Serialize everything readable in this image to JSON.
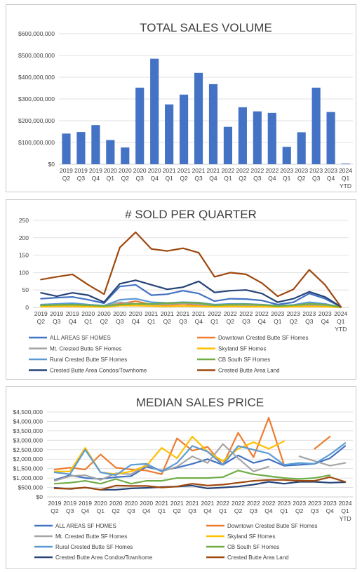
{
  "chart_data": [
    {
      "type": "bar",
      "title": "TOTAL SALES VOLUME",
      "categories": [
        [
          "2019",
          "Q2"
        ],
        [
          "2019",
          "Q3"
        ],
        [
          "2019",
          "Q4"
        ],
        [
          "2020",
          "Q1"
        ],
        [
          "2020",
          "Q2"
        ],
        [
          "2020",
          "Q3"
        ],
        [
          "2020",
          "Q4"
        ],
        [
          "2021",
          "Q1"
        ],
        [
          "2021",
          "Q2"
        ],
        [
          "2021",
          "Q3"
        ],
        [
          "2021",
          "Q4"
        ],
        [
          "2022",
          "Q1"
        ],
        [
          "2022",
          "Q2"
        ],
        [
          "2022",
          "Q3"
        ],
        [
          "2022",
          "Q4"
        ],
        [
          "2023",
          "Q1"
        ],
        [
          "2023",
          "Q2"
        ],
        [
          "2023",
          "Q3"
        ],
        [
          "2023",
          "Q4"
        ],
        [
          "2024",
          "Q1",
          "YTD"
        ]
      ],
      "values": [
        141000000,
        148000000,
        180000000,
        111000000,
        77000000,
        352000000,
        485000000,
        275000000,
        320000000,
        420000000,
        368000000,
        172000000,
        262000000,
        243000000,
        236000000,
        80000000,
        147000000,
        352000000,
        240000000,
        3000000
      ],
      "ylim": [
        0,
        600000000
      ],
      "yticks": [
        "$0",
        "$100,000,000",
        "$200,000,000",
        "$300,000,000",
        "$400,000,000",
        "$500,000,000",
        "$600,000,000"
      ],
      "color": "#4472C4",
      "grid": true
    },
    {
      "type": "line",
      "title": "# SOLD PER QUARTER",
      "categories": [
        [
          "2019",
          "Q2"
        ],
        [
          "2019",
          "Q3"
        ],
        [
          "2019",
          "Q4"
        ],
        [
          "2020",
          "Q1"
        ],
        [
          "2020",
          "Q2"
        ],
        [
          "2020",
          "Q3"
        ],
        [
          "2020",
          "Q4"
        ],
        [
          "2021",
          "Q1"
        ],
        [
          "2021",
          "Q2"
        ],
        [
          "2021",
          "Q3"
        ],
        [
          "2021",
          "Q4"
        ],
        [
          "2022",
          "Q1"
        ],
        [
          "2022",
          "Q2"
        ],
        [
          "2022",
          "Q3"
        ],
        [
          "2022",
          "Q4"
        ],
        [
          "2023",
          "Q1"
        ],
        [
          "2023",
          "Q2"
        ],
        [
          "2023",
          "Q3"
        ],
        [
          "2023",
          "Q4"
        ],
        [
          "2024",
          "Q1",
          "YTD"
        ]
      ],
      "ylim": [
        0,
        250
      ],
      "yticks": [
        "0",
        "50",
        "100",
        "150",
        "200",
        "250"
      ],
      "grid": true,
      "legend_position": "bottom",
      "series": [
        {
          "name": "ALL AREAS SF HOMES",
          "color": "#4472C4",
          "values": [
            25,
            28,
            30,
            22,
            12,
            60,
            65,
            35,
            38,
            48,
            40,
            18,
            25,
            24,
            20,
            8,
            15,
            40,
            25,
            2
          ]
        },
        {
          "name": "Downtown Crested Butte SF Homes",
          "color": "#ED7D31",
          "values": [
            5,
            6,
            8,
            5,
            3,
            10,
            18,
            8,
            6,
            10,
            5,
            5,
            6,
            5,
            4,
            2,
            3,
            6,
            4,
            0
          ]
        },
        {
          "name": "Mt. Crested Butte SF Homes",
          "color": "#A5A5A5",
          "values": [
            5,
            5,
            6,
            4,
            3,
            15,
            10,
            8,
            9,
            12,
            9,
            4,
            6,
            6,
            5,
            2,
            4,
            8,
            5,
            0
          ]
        },
        {
          "name": "Skyland SF Homes",
          "color": "#FFC000",
          "values": [
            2,
            3,
            3,
            2,
            1,
            5,
            5,
            4,
            3,
            4,
            3,
            2,
            3,
            2,
            2,
            1,
            2,
            3,
            2,
            0
          ]
        },
        {
          "name": "Rural Crested Butte SF Homes",
          "color": "#5B9BD5",
          "values": [
            8,
            10,
            12,
            8,
            5,
            22,
            25,
            15,
            13,
            15,
            14,
            8,
            10,
            10,
            8,
            5,
            7,
            15,
            10,
            1
          ]
        },
        {
          "name": "CB South SF Homes",
          "color": "#70AD47",
          "values": [
            6,
            7,
            8,
            6,
            4,
            8,
            10,
            10,
            12,
            14,
            13,
            6,
            8,
            9,
            7,
            4,
            6,
            10,
            8,
            1
          ]
        },
        {
          "name": "Crested Butte Area Condos/Townhome",
          "color": "#264478",
          "values": [
            42,
            32,
            42,
            35,
            15,
            68,
            78,
            65,
            52,
            58,
            75,
            43,
            48,
            50,
            40,
            15,
            25,
            45,
            30,
            2
          ]
        },
        {
          "name": "Crested Butte Area Land",
          "color": "#9E480E",
          "values": [
            80,
            88,
            95,
            65,
            38,
            172,
            216,
            168,
            162,
            170,
            157,
            88,
            100,
            95,
            70,
            32,
            52,
            108,
            65,
            2
          ]
        }
      ]
    },
    {
      "type": "line",
      "title": "MEDIAN SALES PRICE",
      "categories": [
        [
          "2019",
          "Q2"
        ],
        [
          "2019",
          "Q3"
        ],
        [
          "2019",
          "Q4"
        ],
        [
          "2020",
          "Q1"
        ],
        [
          "2020",
          "Q2"
        ],
        [
          "2020",
          "Q3"
        ],
        [
          "2020",
          "Q4"
        ],
        [
          "2021",
          "Q1"
        ],
        [
          "2021",
          "Q2"
        ],
        [
          "2021",
          "Q3"
        ],
        [
          "2021",
          "Q4"
        ],
        [
          "2022",
          "Q1"
        ],
        [
          "2022",
          "Q2"
        ],
        [
          "2022",
          "Q3"
        ],
        [
          "2022",
          "Q4"
        ],
        [
          "2023",
          "Q1"
        ],
        [
          "2023",
          "Q2"
        ],
        [
          "2023",
          "Q3"
        ],
        [
          "2023",
          "Q4"
        ],
        [
          "2024",
          "Q1",
          "YTD"
        ]
      ],
      "ylim": [
        0,
        4500000
      ],
      "yticks": [
        "$0",
        "$500,000",
        "$1,000,000",
        "$1,500,000",
        "$2,000,000",
        "$2,500,000",
        "$3,000,000",
        "$3,500,000",
        "$4,000,000",
        "$4,500,000"
      ],
      "grid": true,
      "legend_position": "bottom",
      "series": [
        {
          "name": "ALL AREAS SF HOMES",
          "color": "#4472C4",
          "values": [
            900000,
            1150000,
            1000000,
            950000,
            1050000,
            1100000,
            1600000,
            1400000,
            1550000,
            1750000,
            2000000,
            1700000,
            2200000,
            1800000,
            2000000,
            1650000,
            1700000,
            1750000,
            2050000,
            2700000
          ]
        },
        {
          "name": "Downtown Crested Butte SF Homes",
          "color": "#ED7D31",
          "values": [
            1450000,
            1550000,
            1450000,
            2250000,
            1550000,
            1450000,
            1400000,
            1200000,
            3100000,
            2450000,
            2650000,
            1700000,
            3400000,
            2100000,
            4200000,
            1700000,
            null,
            2550000,
            3200000,
            null
          ]
        },
        {
          "name": "Mt. Crested Butte SF Homes",
          "color": "#A5A5A5",
          "values": [
            850000,
            1100000,
            1150000,
            900000,
            1250000,
            1200000,
            1700000,
            1350000,
            1600000,
            2150000,
            1800000,
            2800000,
            2050000,
            1350000,
            1600000,
            null,
            2150000,
            1900000,
            1650000,
            1800000
          ]
        },
        {
          "name": "Skyland SF Homes",
          "color": "#FFC000",
          "values": [
            1350000,
            1350000,
            2600000,
            1300000,
            1200000,
            1350000,
            1650000,
            2600000,
            2050000,
            3200000,
            2400000,
            1900000,
            2550000,
            2900000,
            2550000,
            2950000,
            null,
            null,
            null,
            null
          ]
        },
        {
          "name": "Rural Crested Butte SF Homes",
          "color": "#5B9BD5",
          "values": [
            1300000,
            1200000,
            2500000,
            1300000,
            1150000,
            1700000,
            1750000,
            1350000,
            1800000,
            2700000,
            2400000,
            1700000,
            2700000,
            2500000,
            2300000,
            1700000,
            1800000,
            1750000,
            2250000,
            2850000
          ]
        },
        {
          "name": "CB South SF Homes",
          "color": "#70AD47",
          "values": [
            700000,
            750000,
            850000,
            700000,
            950000,
            700000,
            850000,
            850000,
            1000000,
            1000000,
            1000000,
            1050000,
            1400000,
            1200000,
            1100000,
            1000000,
            950000,
            1000000,
            1150000,
            null
          ]
        },
        {
          "name": "Crested Butte Area Condos/Townhome",
          "color": "#264478",
          "values": [
            480000,
            420000,
            500000,
            380000,
            380000,
            450000,
            480000,
            520000,
            550000,
            600000,
            450000,
            500000,
            550000,
            650000,
            800000,
            700000,
            800000,
            800000,
            750000,
            780000
          ]
        },
        {
          "name": "Crested Butte Area Land",
          "color": "#9E480E",
          "values": [
            450000,
            430000,
            500000,
            380000,
            600000,
            580000,
            580000,
            500000,
            550000,
            700000,
            600000,
            650000,
            750000,
            850000,
            900000,
            900000,
            850000,
            850000,
            1050000,
            800000
          ]
        }
      ]
    }
  ]
}
